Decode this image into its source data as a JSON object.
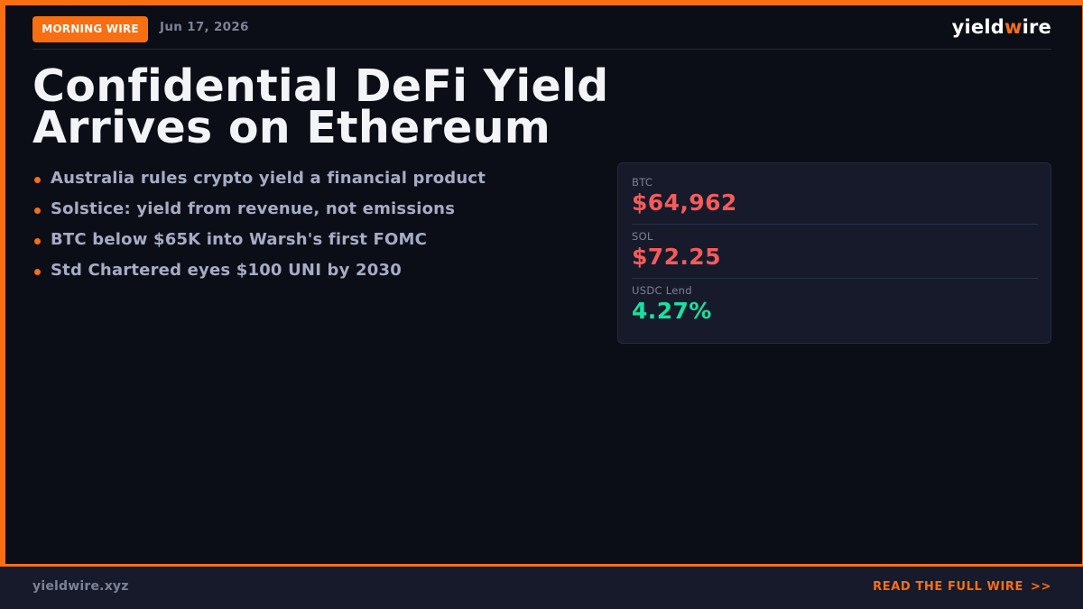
{
  "header": {
    "badge": "MORNING WIRE",
    "date": "Jun 17, 2026",
    "brand_pre": "yield",
    "brand_accent": "w",
    "brand_post": "ire"
  },
  "headline": {
    "line1": "Confidential DeFi Yield",
    "line2": "Arrives on Ethereum"
  },
  "bullets": [
    "Australia rules crypto yield a financial product",
    "Solstice: yield from revenue, not emissions",
    "BTC below $65K into Warsh's first FOMC",
    "Std Chartered eyes $100 UNI by 2030"
  ],
  "stats": [
    {
      "label": "BTC",
      "value": "$64,962",
      "trend": "down"
    },
    {
      "label": "SOL",
      "value": "$72.25",
      "trend": "down"
    },
    {
      "label": "USDC Lend",
      "value": "4.27%",
      "trend": "up"
    }
  ],
  "footer": {
    "site": "yieldwire.xyz",
    "cta": "READ THE FULL WIRE",
    "cta_arrows": ">>"
  },
  "colors": {
    "accent": "#f86f12",
    "background": "#0b0e16",
    "panel": "#161a2a",
    "negative": "#f45b5b",
    "positive": "#19e0a0"
  }
}
